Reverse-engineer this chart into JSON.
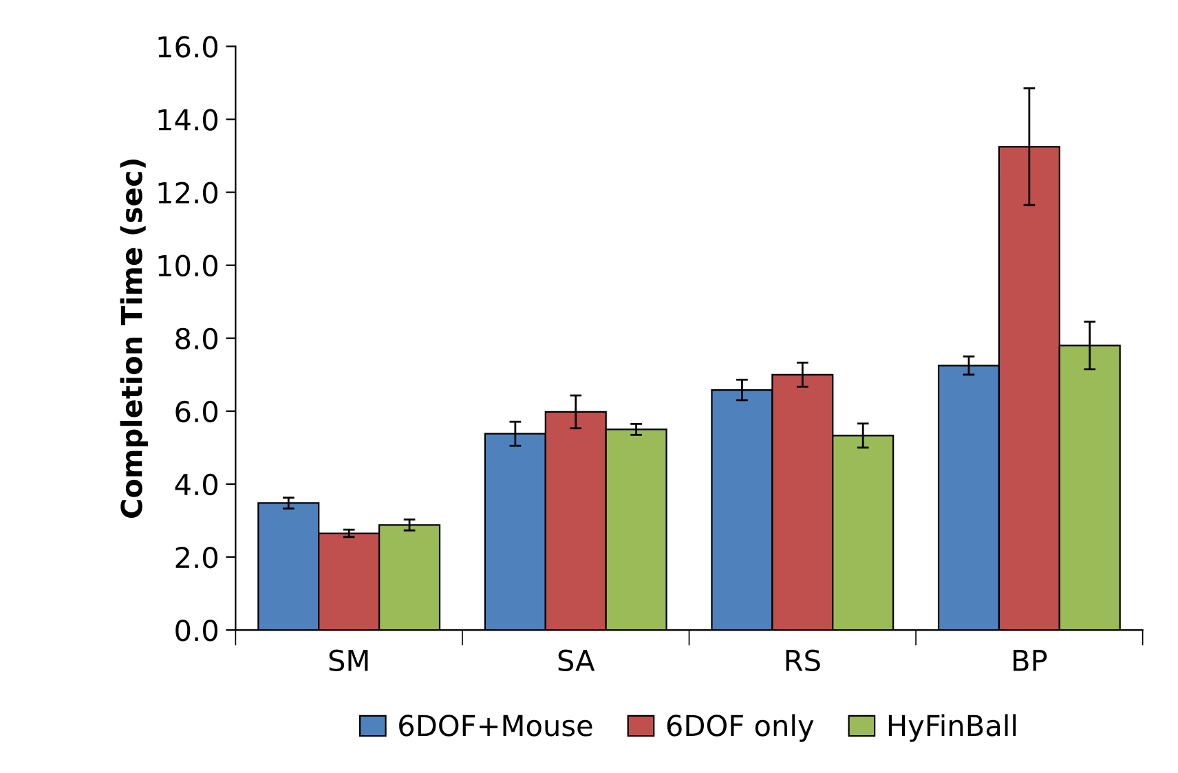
{
  "chart_data": {
    "type": "bar",
    "ylabel": "Completion Time (sec)",
    "categories": [
      "SM",
      "SA",
      "RS",
      "BP"
    ],
    "series": [
      {
        "name": "6DOF+Mouse",
        "color": "#4f81bd",
        "values": [
          3.48,
          5.38,
          6.58,
          7.25
        ],
        "errors": [
          0.15,
          0.33,
          0.28,
          0.25
        ]
      },
      {
        "name": "6DOF only",
        "color": "#c0504d",
        "values": [
          2.65,
          5.98,
          7.0,
          13.25
        ],
        "errors": [
          0.1,
          0.45,
          0.33,
          1.6
        ]
      },
      {
        "name": "HyFinBall",
        "color": "#9bbb59",
        "values": [
          2.88,
          5.5,
          5.33,
          7.8
        ],
        "errors": [
          0.15,
          0.15,
          0.33,
          0.65
        ]
      }
    ],
    "ylim": [
      0,
      16
    ],
    "yticks": [
      {
        "value": 0,
        "label": "0.0"
      },
      {
        "value": 2,
        "label": "2.0"
      },
      {
        "value": 4,
        "label": "4.0"
      },
      {
        "value": 6,
        "label": "6.0"
      },
      {
        "value": 8,
        "label": "8.0"
      },
      {
        "value": 10,
        "label": "10.0"
      },
      {
        "value": 12,
        "label": "12.0"
      },
      {
        "value": 14,
        "label": "14.0"
      },
      {
        "value": 16,
        "label": "16.0"
      }
    ],
    "grid": false,
    "legend": "bottom"
  }
}
